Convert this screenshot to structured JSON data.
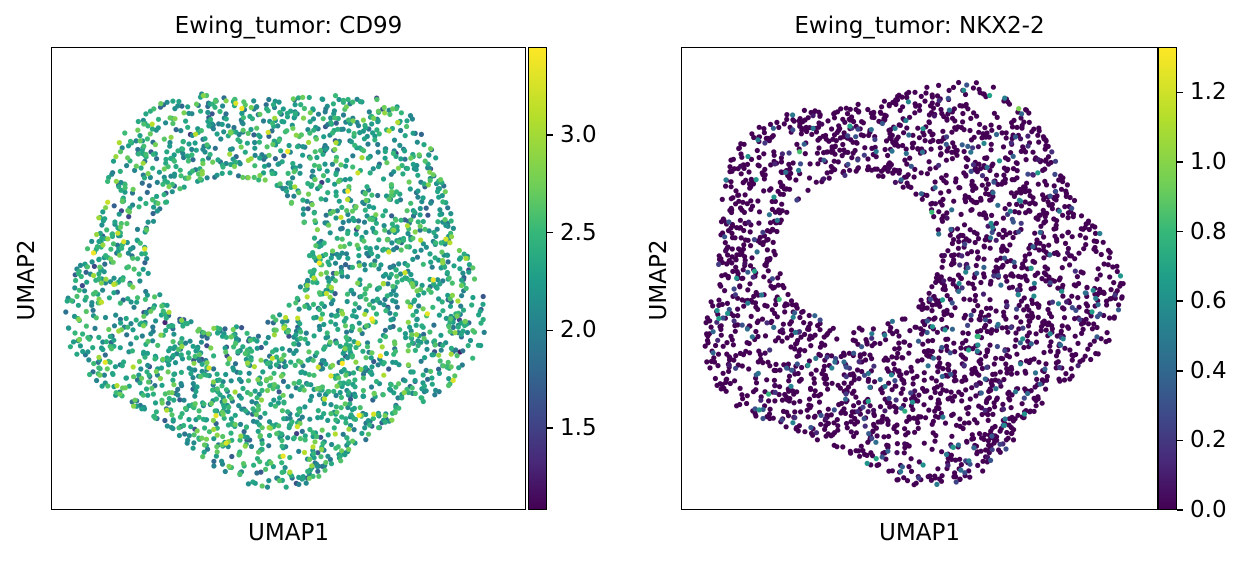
{
  "chart_data": [
    {
      "type": "scatter",
      "title": "Ewing_tumor: CD99",
      "xlabel": "UMAP1",
      "ylabel": "UMAP2",
      "colorbar": {
        "colormap": "viridis",
        "range": [
          1.08,
          3.45
        ],
        "ticks": [
          1.5,
          2.0,
          2.5,
          3.0
        ],
        "tick_labels": [
          "1.5",
          "2.0",
          "2.5",
          "3.0"
        ]
      },
      "grid": false,
      "point_distribution": {
        "shape": "ring",
        "n_points": 2600,
        "value_mean": 2.45,
        "value_sd": 0.35
      }
    },
    {
      "type": "scatter",
      "title": "Ewing_tumor: NKX2-2",
      "xlabel": "UMAP1",
      "ylabel": "UMAP2",
      "colorbar": {
        "colormap": "viridis",
        "range": [
          0.0,
          1.33
        ],
        "ticks": [
          0.0,
          0.2,
          0.4,
          0.6,
          0.8,
          1.0,
          1.2
        ],
        "tick_labels": [
          "0.0",
          "0.2",
          "0.4",
          "0.6",
          "0.8",
          "1.0",
          "1.2"
        ]
      },
      "grid": false,
      "point_distribution": {
        "shape": "ring",
        "n_points": 2600,
        "fraction_zero": 0.85,
        "nonzero_mean": 0.35
      }
    }
  ]
}
